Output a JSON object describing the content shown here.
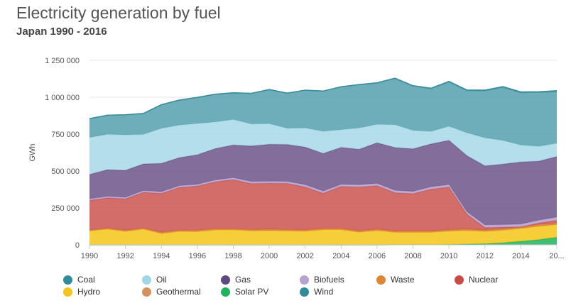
{
  "header": {
    "title": "Electricity generation by fuel",
    "subtitle": "Japan 1990 - 2016"
  },
  "chart_data": {
    "type": "area",
    "stacked": true,
    "title": "Electricity generation by fuel",
    "subtitle": "Japan 1990 - 2016",
    "ylabel": "GWh",
    "xlabel": "",
    "ylim": [
      0,
      1250000
    ],
    "xlim": [
      1990,
      2016
    ],
    "y_ticks": [
      0,
      250000,
      500000,
      750000,
      1000000,
      1250000
    ],
    "y_tick_labels": [
      "0",
      "250 000",
      "500 000",
      "750 000",
      "1 000 000",
      "1 250 000"
    ],
    "x_tick_labels": [
      "1990",
      "1992",
      "1994",
      "1996",
      "1998",
      "2000",
      "2002",
      "2004",
      "2006",
      "2008",
      "2010",
      "2012",
      "2014",
      "20..."
    ],
    "grid": "horizontal",
    "legend_position": "bottom",
    "x": [
      1990,
      1991,
      1992,
      1993,
      1994,
      1995,
      1996,
      1997,
      1998,
      1999,
      2000,
      2001,
      2002,
      2003,
      2004,
      2005,
      2006,
      2007,
      2008,
      2009,
      2010,
      2011,
      2012,
      2013,
      2014,
      2015,
      2016
    ],
    "series": [
      {
        "name": "Solar PV",
        "color": "#21b35c",
        "values": [
          0,
          0,
          0,
          0,
          0,
          0,
          0,
          0,
          0,
          0,
          0,
          0,
          0,
          0,
          0,
          0,
          0,
          1000,
          2000,
          2000,
          3000,
          5000,
          7000,
          14000,
          24000,
          35000,
          51000
        ]
      },
      {
        "name": "Hydro",
        "color": "#f5c518",
        "values": [
          95000,
          107000,
          92000,
          107000,
          77000,
          91000,
          90000,
          101000,
          102000,
          95000,
          96000,
          94000,
          92000,
          103000,
          103000,
          86000,
          97000,
          84000,
          83000,
          83000,
          90000,
          92000,
          84000,
          85000,
          87000,
          91000,
          86000
        ]
      },
      {
        "name": "Geothermal",
        "color": "#d4915a",
        "values": [
          2000,
          2000,
          2000,
          2000,
          3000,
          3000,
          3000,
          3000,
          3000,
          3000,
          3000,
          3000,
          3000,
          3000,
          3000,
          3000,
          3000,
          3000,
          3000,
          3000,
          3000,
          3000,
          3000,
          3000,
          3000,
          3000,
          3000
        ]
      },
      {
        "name": "Waste",
        "color": "#e08038",
        "values": [
          4000,
          5000,
          5000,
          5000,
          6000,
          6000,
          7000,
          7000,
          7000,
          7000,
          7000,
          7000,
          7000,
          7000,
          7000,
          7000,
          7000,
          7000,
          7000,
          7000,
          7000,
          7000,
          7000,
          8000,
          8000,
          9000,
          9000
        ]
      },
      {
        "name": "Nuclear",
        "color": "#cb534f",
        "values": [
          200000,
          204000,
          212000,
          242000,
          262000,
          289000,
          298000,
          316000,
          330000,
          310000,
          311000,
          312000,
          290000,
          236000,
          282000,
          296000,
          293000,
          258000,
          251000,
          282000,
          288000,
          100000,
          16000,
          9000,
          0,
          9000,
          17000
        ]
      },
      {
        "name": "Biofuels",
        "color": "#b19fcb",
        "values": [
          11000,
          11000,
          11000,
          12000,
          12000,
          12000,
          12000,
          13000,
          13000,
          14000,
          14000,
          14000,
          15000,
          15000,
          15000,
          15000,
          16000,
          16000,
          16000,
          16000,
          17000,
          17000,
          18000,
          18000,
          19000,
          20000,
          22000
        ]
      },
      {
        "name": "Gas",
        "color": "#6d5488",
        "values": [
          165000,
          180000,
          183000,
          180000,
          192000,
          190000,
          200000,
          212000,
          222000,
          240000,
          250000,
          250000,
          255000,
          255000,
          250000,
          240000,
          275000,
          290000,
          288000,
          290000,
          300000,
          380000,
          400000,
          410000,
          420000,
          400000,
          410000
        ]
      },
      {
        "name": "Oil",
        "color": "#a7d8e6",
        "values": [
          250000,
          240000,
          240000,
          200000,
          237000,
          220000,
          212000,
          180000,
          172000,
          150000,
          140000,
          110000,
          130000,
          150000,
          120000,
          145000,
          125000,
          155000,
          125000,
          85000,
          95000,
          155000,
          190000,
          160000,
          115000,
          100000,
          90000
        ]
      },
      {
        "name": "Coal",
        "color": "#54a0ae",
        "values": [
          128000,
          129000,
          136000,
          142000,
          160000,
          170000,
          177000,
          188000,
          181000,
          207000,
          231000,
          238000,
          255000,
          272000,
          290000,
          292000,
          280000,
          312000,
          300000,
          290000,
          300000,
          285000,
          318000,
          360000,
          355000,
          365000,
          350000
        ]
      },
      {
        "name": "Wind",
        "color": "#3a8d9c",
        "values": [
          0,
          0,
          0,
          0,
          0,
          0,
          0,
          0,
          0,
          0,
          0,
          0,
          1000,
          1000,
          1000,
          2000,
          2000,
          3000,
          3000,
          3000,
          4000,
          5000,
          5000,
          5000,
          5000,
          5000,
          6000
        ]
      }
    ]
  },
  "legend": [
    {
      "label": "Coal",
      "color": "#2f8c9b"
    },
    {
      "label": "Oil",
      "color": "#9fd5e6"
    },
    {
      "label": "Gas",
      "color": "#5b4a7f"
    },
    {
      "label": "Biofuels",
      "color": "#b8a2cf"
    },
    {
      "label": "Waste",
      "color": "#de8536"
    },
    {
      "label": "Nuclear",
      "color": "#c94b48"
    },
    {
      "label": "Hydro",
      "color": "#f5c518"
    },
    {
      "label": "Geothermal",
      "color": "#d4915a"
    },
    {
      "label": "Solar PV",
      "color": "#1fb35a"
    },
    {
      "label": "Wind",
      "color": "#2f8c9b"
    }
  ]
}
